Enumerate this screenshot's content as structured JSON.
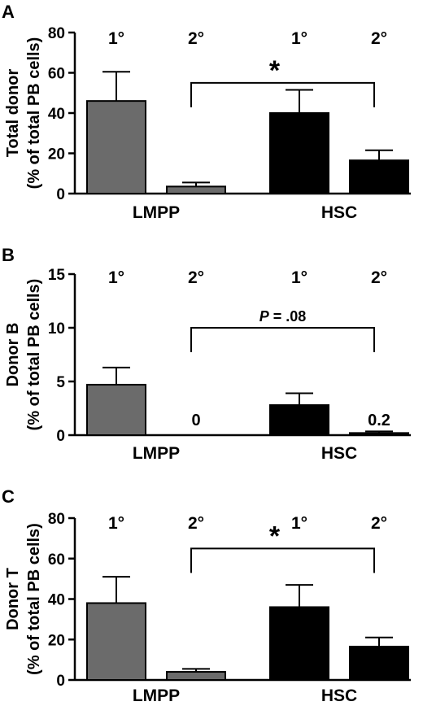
{
  "chart_data": [
    {
      "type": "bar",
      "panel_label": "A",
      "categories": [
        "LMPP",
        "HSC"
      ],
      "bar_labels": [
        "1°",
        "2°",
        "1°",
        "2°"
      ],
      "ylabel": "Total donor",
      "ylabel_sub": "(% of total PB cells)",
      "ylim": [
        0,
        80
      ],
      "yticks": [
        0,
        20,
        40,
        60,
        80
      ],
      "bars": [
        {
          "group": "LMPP",
          "condition": "1°",
          "value": 46,
          "error": 14.5,
          "color": "#6b6b6b"
        },
        {
          "group": "LMPP",
          "condition": "2°",
          "value": 3.5,
          "error": 2,
          "color": "#6b6b6b"
        },
        {
          "group": "HSC",
          "condition": "1°",
          "value": 40,
          "error": 11.5,
          "color": "#000000"
        },
        {
          "group": "HSC",
          "condition": "2°",
          "value": 16.5,
          "error": 5,
          "color": "#000000"
        }
      ],
      "value_labels": [
        "",
        "",
        "",
        ""
      ],
      "comparison": {
        "from_bar": 1,
        "to_bar": 3,
        "label": "*",
        "label_style": "star",
        "y": 55
      }
    },
    {
      "type": "bar",
      "panel_label": "B",
      "categories": [
        "LMPP",
        "HSC"
      ],
      "bar_labels": [
        "1°",
        "2°",
        "1°",
        "2°"
      ],
      "ylabel": "Donor B",
      "ylabel_sub": "(% of total PB cells)",
      "ylim": [
        0,
        15
      ],
      "yticks": [
        0,
        5,
        10,
        15
      ],
      "bars": [
        {
          "group": "LMPP",
          "condition": "1°",
          "value": 4.7,
          "error": 1.6,
          "color": "#6b6b6b"
        },
        {
          "group": "LMPP",
          "condition": "2°",
          "value": 0,
          "error": 0,
          "color": "#6b6b6b"
        },
        {
          "group": "HSC",
          "condition": "1°",
          "value": 2.8,
          "error": 1.1,
          "color": "#000000"
        },
        {
          "group": "HSC",
          "condition": "2°",
          "value": 0.2,
          "error": 0.15,
          "color": "#000000"
        }
      ],
      "value_labels": [
        "",
        "0",
        "",
        "0.2"
      ],
      "comparison": {
        "from_bar": 1,
        "to_bar": 3,
        "label_p": "P",
        "label": " = .08",
        "label_style": "p",
        "y": 10
      }
    },
    {
      "type": "bar",
      "panel_label": "C",
      "categories": [
        "LMPP",
        "HSC"
      ],
      "bar_labels": [
        "1°",
        "2°",
        "1°",
        "2°"
      ],
      "ylabel": "Donor T",
      "ylabel_sub": "(% of total PB cells)",
      "ylim": [
        0,
        80
      ],
      "yticks": [
        0,
        20,
        40,
        60,
        80
      ],
      "bars": [
        {
          "group": "LMPP",
          "condition": "1°",
          "value": 38,
          "error": 13,
          "color": "#6b6b6b"
        },
        {
          "group": "LMPP",
          "condition": "2°",
          "value": 4,
          "error": 1.5,
          "color": "#6b6b6b"
        },
        {
          "group": "HSC",
          "condition": "1°",
          "value": 36,
          "error": 11,
          "color": "#000000"
        },
        {
          "group": "HSC",
          "condition": "2°",
          "value": 16.5,
          "error": 4.5,
          "color": "#000000"
        }
      ],
      "value_labels": [
        "",
        "",
        "",
        ""
      ],
      "comparison": {
        "from_bar": 1,
        "to_bar": 3,
        "label": "*",
        "label_style": "star",
        "y": 65
      }
    }
  ]
}
